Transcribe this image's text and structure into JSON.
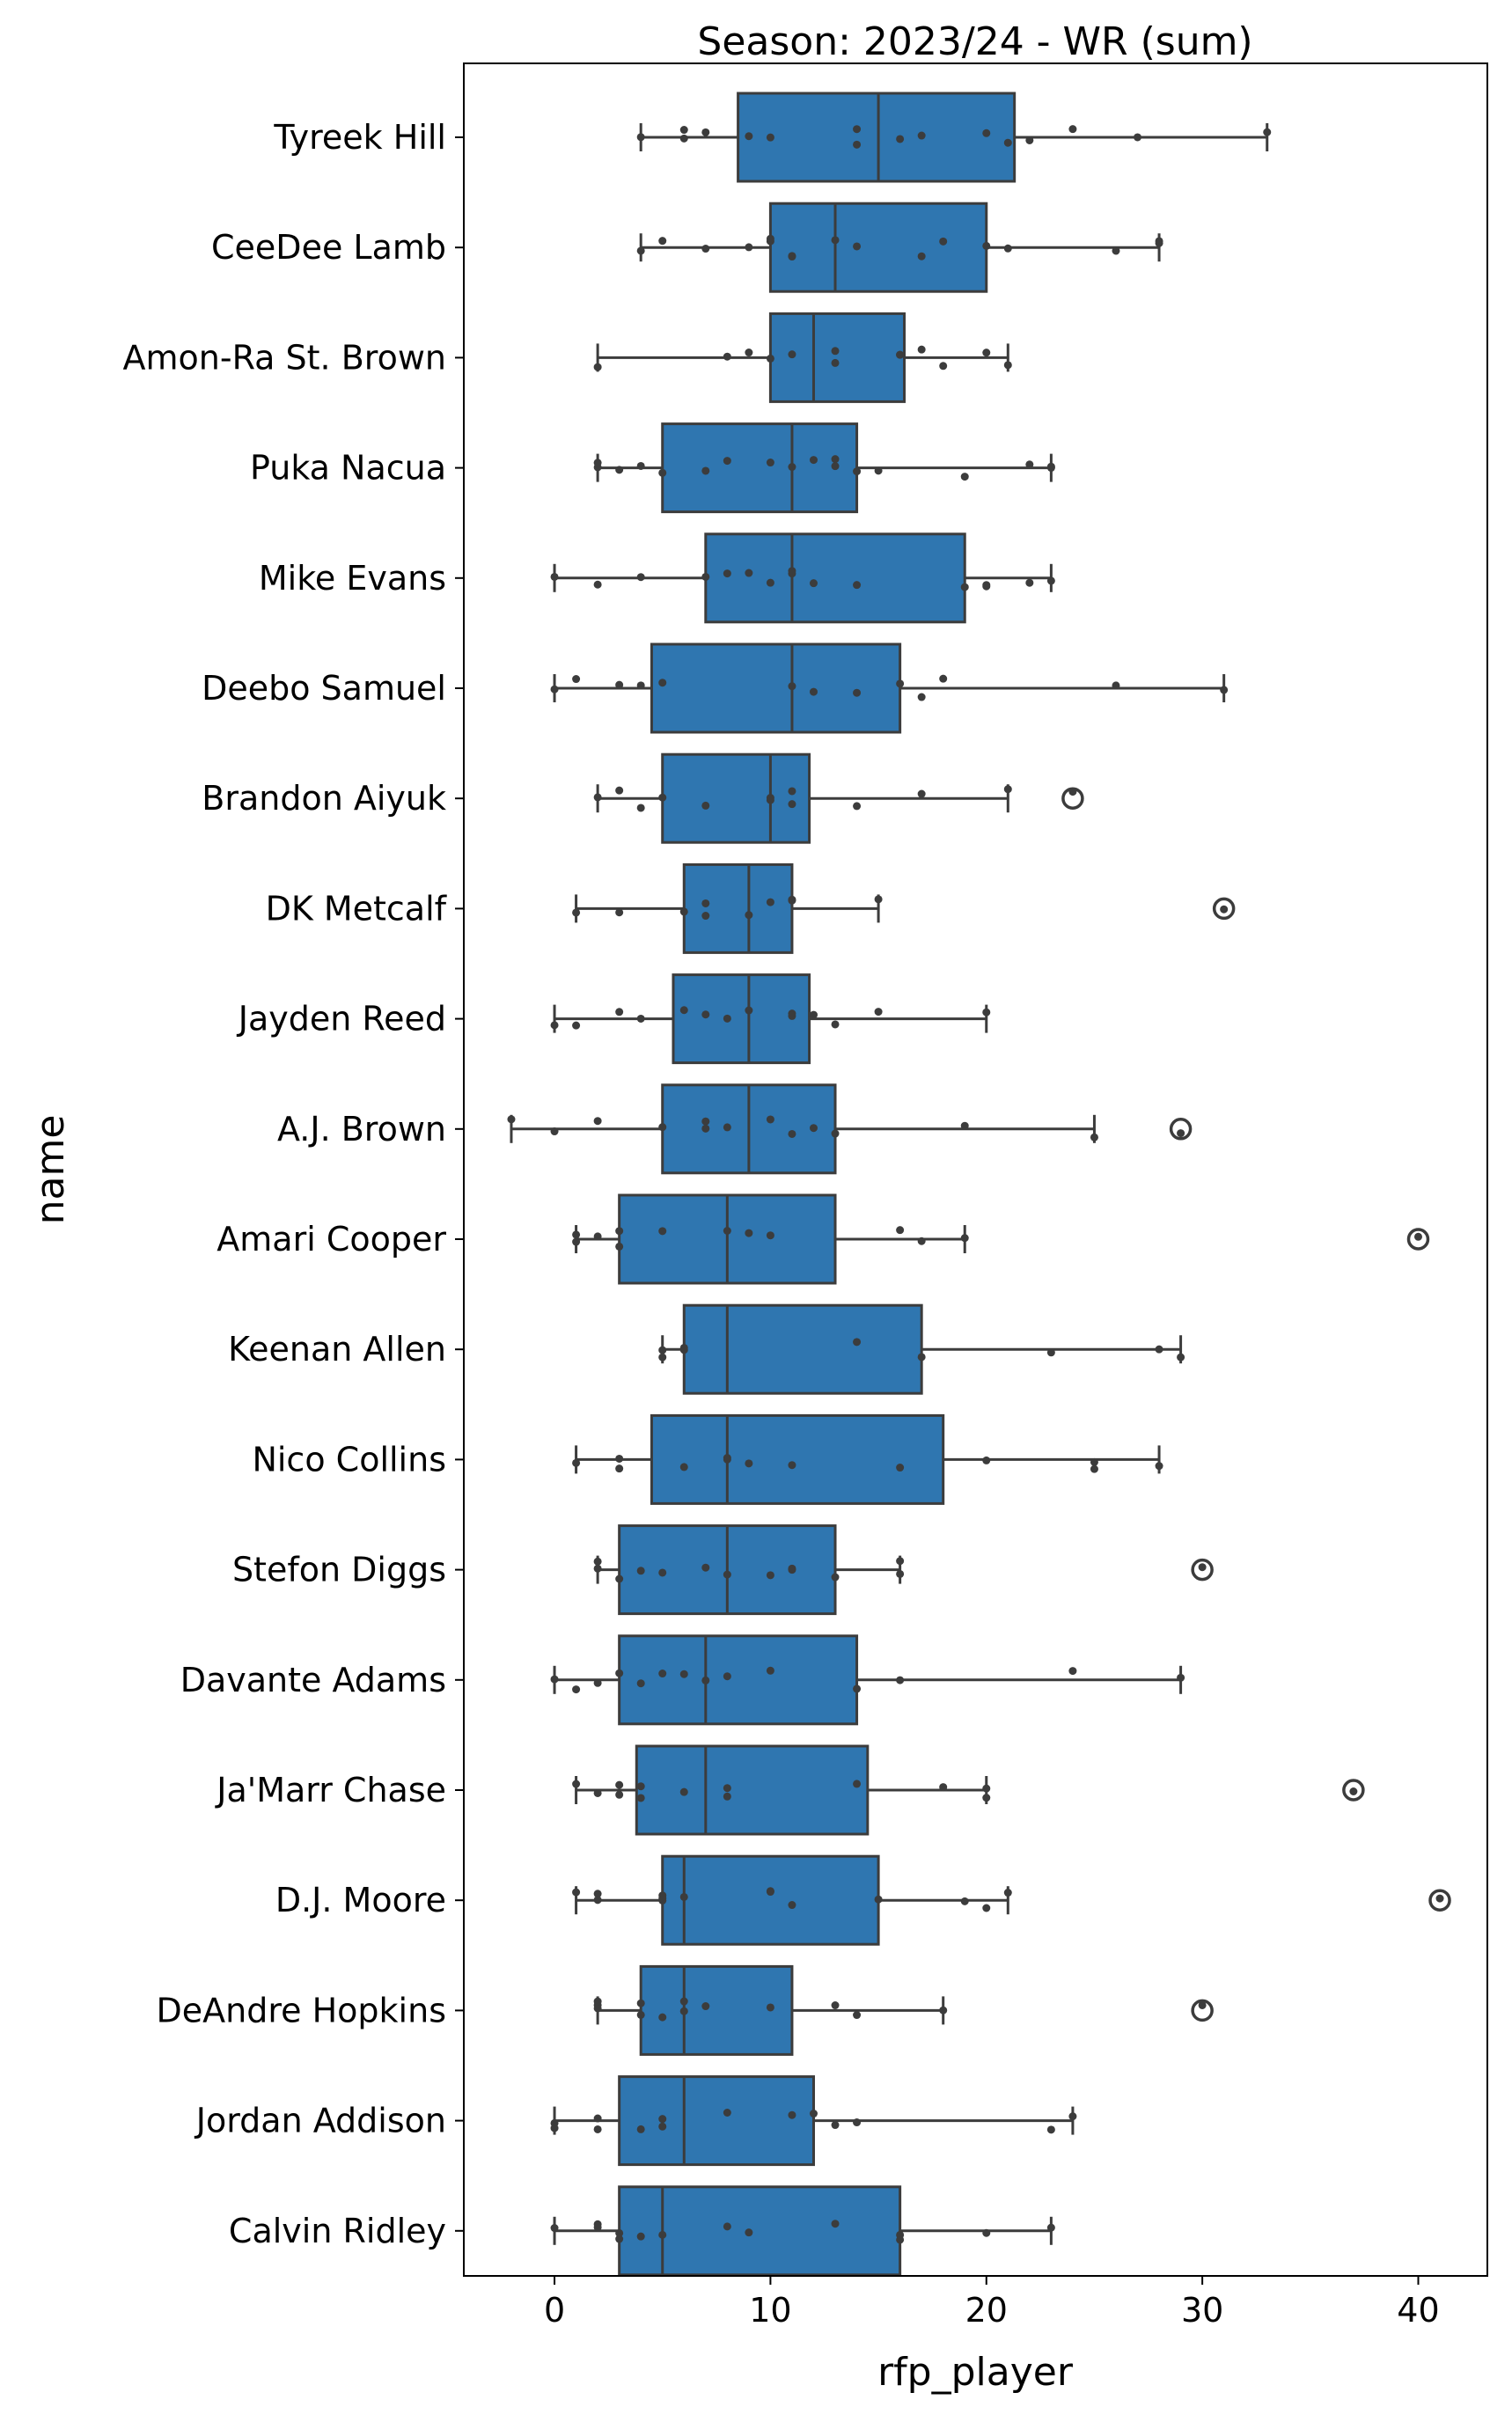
{
  "chart_data": {
    "type": "boxplot",
    "title": "Season: 2023/24 - WR (sum)",
    "xlabel": "rfp_player",
    "ylabel": "name",
    "xlim": [
      -4.2,
      43.2
    ],
    "xticks": [
      0,
      10,
      20,
      30,
      40
    ],
    "colors": {
      "box": "#2f76b0",
      "line": "#3c3c3c",
      "point": "#3c3c3c"
    },
    "players": [
      {
        "name": "Tyreek Hill",
        "box": {
          "whisker_low": 4,
          "q1": 8.5,
          "median": 15,
          "q3": 21.3,
          "whisker_high": 33
        },
        "outliers": [],
        "points": [
          4,
          6,
          6,
          7,
          9,
          10,
          14,
          14,
          16,
          17,
          20,
          21,
          22,
          24,
          27,
          33
        ]
      },
      {
        "name": "CeeDee Lamb",
        "box": {
          "whisker_low": 4,
          "q1": 10,
          "median": 13,
          "q3": 20,
          "whisker_high": 28
        },
        "outliers": [],
        "points": [
          4,
          5,
          7,
          9,
          10,
          10,
          11,
          11,
          13,
          14,
          17,
          18,
          20,
          21,
          26,
          28,
          28
        ]
      },
      {
        "name": "Amon-Ra St. Brown",
        "box": {
          "whisker_low": 2,
          "q1": 10,
          "median": 12,
          "q3": 16.2,
          "whisker_high": 21
        },
        "outliers": [],
        "points": [
          2,
          8,
          9,
          10,
          11,
          13,
          13,
          16,
          16,
          17,
          18,
          20,
          21
        ]
      },
      {
        "name": "Puka Nacua",
        "box": {
          "whisker_low": 2,
          "q1": 5,
          "median": 11,
          "q3": 14,
          "whisker_high": 23
        },
        "outliers": [],
        "points": [
          2,
          2,
          3,
          4,
          5,
          7,
          8,
          10,
          11,
          12,
          13,
          13,
          14,
          15,
          19,
          22,
          23,
          23
        ]
      },
      {
        "name": "Mike Evans",
        "box": {
          "whisker_low": 0,
          "q1": 7,
          "median": 11,
          "q3": 19,
          "whisker_high": 23
        },
        "outliers": [],
        "points": [
          0,
          2,
          4,
          7,
          8,
          9,
          10,
          11,
          11,
          12,
          14,
          19,
          20,
          20,
          22,
          23
        ]
      },
      {
        "name": "Deebo Samuel",
        "box": {
          "whisker_low": 0,
          "q1": 4.5,
          "median": 11,
          "q3": 16,
          "whisker_high": 31
        },
        "outliers": [],
        "points": [
          0,
          1,
          3,
          4,
          5,
          11,
          12,
          14,
          16,
          17,
          18,
          26,
          31
        ]
      },
      {
        "name": "Brandon Aiyuk",
        "box": {
          "whisker_low": 2,
          "q1": 5,
          "median": 10,
          "q3": 11.8,
          "whisker_high": 21
        },
        "outliers": [
          24
        ],
        "points": [
          2,
          3,
          4,
          5,
          7,
          10,
          10,
          11,
          11,
          14,
          17,
          21,
          24
        ]
      },
      {
        "name": "DK Metcalf",
        "box": {
          "whisker_low": 1,
          "q1": 6,
          "median": 9,
          "q3": 11,
          "whisker_high": 15
        },
        "outliers": [
          31
        ],
        "points": [
          1,
          3,
          6,
          7,
          7,
          9,
          10,
          11,
          11,
          15,
          31
        ]
      },
      {
        "name": "Jayden Reed",
        "box": {
          "whisker_low": 0,
          "q1": 5.5,
          "median": 9,
          "q3": 11.8,
          "whisker_high": 20
        },
        "outliers": [],
        "points": [
          0,
          1,
          3,
          4,
          6,
          7,
          8,
          9,
          11,
          11,
          12,
          13,
          15,
          20
        ]
      },
      {
        "name": "A.J. Brown",
        "box": {
          "whisker_low": -2,
          "q1": 5,
          "median": 9,
          "q3": 13,
          "whisker_high": 25
        },
        "outliers": [
          29
        ],
        "points": [
          -2,
          0,
          2,
          5,
          7,
          7,
          8,
          10,
          11,
          12,
          13,
          19,
          25,
          29
        ]
      },
      {
        "name": "Amari Cooper",
        "box": {
          "whisker_low": 1,
          "q1": 3,
          "median": 8,
          "q3": 13,
          "whisker_high": 19
        },
        "outliers": [
          40
        ],
        "points": [
          1,
          1,
          2,
          3,
          3,
          5,
          8,
          9,
          10,
          16,
          17,
          19,
          40
        ]
      },
      {
        "name": "Keenan Allen",
        "box": {
          "whisker_low": 5,
          "q1": 6,
          "median": 8,
          "q3": 17,
          "whisker_high": 29
        },
        "outliers": [],
        "points": [
          5,
          5,
          6,
          6,
          14,
          17,
          23,
          28,
          29
        ]
      },
      {
        "name": "Nico Collins",
        "box": {
          "whisker_low": 1,
          "q1": 4.5,
          "median": 8,
          "q3": 18,
          "whisker_high": 28
        },
        "outliers": [],
        "points": [
          1,
          3,
          3,
          6,
          8,
          8,
          9,
          11,
          16,
          20,
          25,
          25,
          28
        ]
      },
      {
        "name": "Stefon Diggs",
        "box": {
          "whisker_low": 2,
          "q1": 3,
          "median": 8,
          "q3": 13,
          "whisker_high": 16
        },
        "outliers": [
          30
        ],
        "points": [
          2,
          2,
          3,
          4,
          5,
          7,
          8,
          10,
          11,
          11,
          13,
          16,
          16,
          30
        ]
      },
      {
        "name": "Davante Adams",
        "box": {
          "whisker_low": 0,
          "q1": 3,
          "median": 7,
          "q3": 14,
          "whisker_high": 29
        },
        "outliers": [],
        "points": [
          0,
          1,
          2,
          3,
          4,
          5,
          6,
          7,
          8,
          10,
          14,
          16,
          24,
          29
        ]
      },
      {
        "name": "Ja'Marr Chase",
        "box": {
          "whisker_low": 1,
          "q1": 3.8,
          "median": 7,
          "q3": 14.5,
          "whisker_high": 20
        },
        "outliers": [
          37
        ],
        "points": [
          1,
          2,
          3,
          3,
          4,
          4,
          6,
          8,
          8,
          14,
          18,
          20,
          20,
          37
        ]
      },
      {
        "name": "D.J. Moore",
        "box": {
          "whisker_low": 1,
          "q1": 5,
          "median": 6,
          "q3": 15,
          "whisker_high": 21
        },
        "outliers": [
          41
        ],
        "points": [
          1,
          2,
          2,
          5,
          5,
          5,
          6,
          10,
          10,
          11,
          15,
          19,
          20,
          21,
          41
        ]
      },
      {
        "name": "DeAndre Hopkins",
        "box": {
          "whisker_low": 2,
          "q1": 4,
          "median": 6,
          "q3": 11,
          "whisker_high": 18
        },
        "outliers": [
          30
        ],
        "points": [
          2,
          2,
          2,
          4,
          4,
          5,
          6,
          6,
          7,
          10,
          13,
          14,
          18,
          30
        ]
      },
      {
        "name": "Jordan Addison",
        "box": {
          "whisker_low": 0,
          "q1": 3,
          "median": 6,
          "q3": 12,
          "whisker_high": 24
        },
        "outliers": [],
        "points": [
          0,
          0,
          2,
          2,
          4,
          5,
          5,
          8,
          11,
          12,
          13,
          14,
          23,
          24
        ]
      },
      {
        "name": "Calvin Ridley",
        "box": {
          "whisker_low": 0,
          "q1": 3,
          "median": 5,
          "q3": 16,
          "whisker_high": 23
        },
        "outliers": [],
        "points": [
          0,
          2,
          2,
          3,
          3,
          4,
          5,
          8,
          9,
          13,
          16,
          16,
          20,
          23
        ]
      }
    ]
  }
}
